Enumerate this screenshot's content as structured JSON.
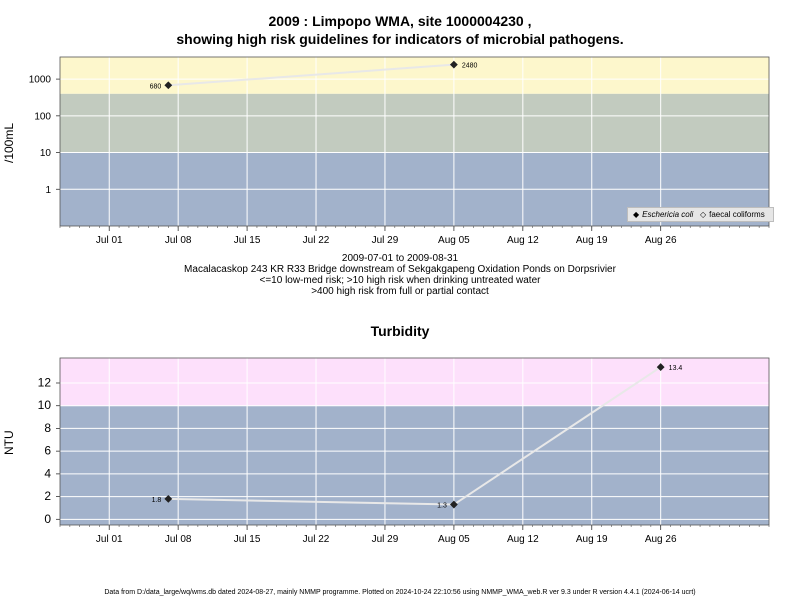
{
  "chart_data": [
    {
      "type": "line",
      "title_line1": "2009 : Limpopo WMA, site 1000004230 ,",
      "title_line2": "showing high risk guidelines for indicators of microbial pathogens.",
      "ylabel": "/100mL",
      "y_scale": "log",
      "ylim": [
        0.1,
        4000
      ],
      "y_ticks": [
        1,
        10,
        100,
        1000
      ],
      "y_tick_labels": [
        "1",
        "10",
        "100",
        "1000"
      ],
      "x_range": [
        "2009-06-26",
        "2009-09-06"
      ],
      "x_ticks": [
        "2009-07-01",
        "2009-07-08",
        "2009-07-15",
        "2009-07-22",
        "2009-07-29",
        "2009-08-05",
        "2009-08-12",
        "2009-08-19",
        "2009-08-26"
      ],
      "x_tick_labels": [
        "Jul 01",
        "Jul 08",
        "Jul 15",
        "Jul 22",
        "Jul 29",
        "Aug 05",
        "Aug 12",
        "Aug 19",
        "Aug 26"
      ],
      "bands": [
        {
          "from": 0.1,
          "to": 10,
          "color": "#a2b2cb"
        },
        {
          "from": 10,
          "to": 400,
          "color": "#c2cbbf"
        },
        {
          "from": 400,
          "to": 4000,
          "color": "#fdf7cc"
        }
      ],
      "series": [
        {
          "name": "Eschericia coli",
          "marker": "diamond-filled",
          "x": [
            "2009-07-07",
            "2009-08-05"
          ],
          "y": [
            680,
            2480
          ],
          "labels": [
            "680",
            "2480"
          ]
        },
        {
          "name": "faecal coliforms",
          "marker": "diamond-open",
          "x": [],
          "y": []
        }
      ],
      "legend_position": "bottom-right",
      "grid": true
    },
    {
      "type": "line",
      "title": "Turbidity",
      "ylabel": "NTU",
      "ylim": [
        -0.5,
        14.2
      ],
      "y_ticks": [
        0,
        2,
        4,
        6,
        8,
        10,
        12
      ],
      "y_tick_labels": [
        "0",
        "2",
        "4",
        "6",
        "8",
        "10",
        "12"
      ],
      "x_range": [
        "2009-06-26",
        "2009-09-06"
      ],
      "x_ticks": [
        "2009-07-01",
        "2009-07-08",
        "2009-07-15",
        "2009-07-22",
        "2009-07-29",
        "2009-08-05",
        "2009-08-12",
        "2009-08-19",
        "2009-08-26"
      ],
      "x_tick_labels": [
        "Jul 01",
        "Jul 08",
        "Jul 15",
        "Jul 22",
        "Jul 29",
        "Aug 05",
        "Aug 12",
        "Aug 19",
        "Aug 26"
      ],
      "bands": [
        {
          "from": -0.5,
          "to": 10,
          "color": "#a2b2cb"
        },
        {
          "from": 10,
          "to": 14.2,
          "color": "#fde0fb"
        }
      ],
      "series": [
        {
          "name": "",
          "marker": "diamond-filled",
          "x": [
            "2009-07-07",
            "2009-08-05",
            "2009-08-26"
          ],
          "y": [
            1.8,
            1.3,
            13.4
          ],
          "labels": [
            "1.8",
            "1.3",
            "13.4"
          ]
        }
      ],
      "grid": true
    }
  ],
  "captions": {
    "line1": "2009-07-01 to 2009-08-31",
    "line2": "Macalacaskop 243 KR R33 Bridge downstream of Sekgakgapeng Oxidation Ponds on Dorpsrivier",
    "line3": "<=10 low-med risk; >10 high risk when drinking untreated water",
    "line4": ">400 high risk from full or partial contact"
  },
  "footnote": "Data from D:/data_large/wq/wms.db dated 2024-08-27, mainly NMMP programme. Plotted on 2024-10-24 22:10:56 using NMMP_WMA_web.R ver 9.3 under R version 4.4.1 (2024-06-14 ucrt)"
}
